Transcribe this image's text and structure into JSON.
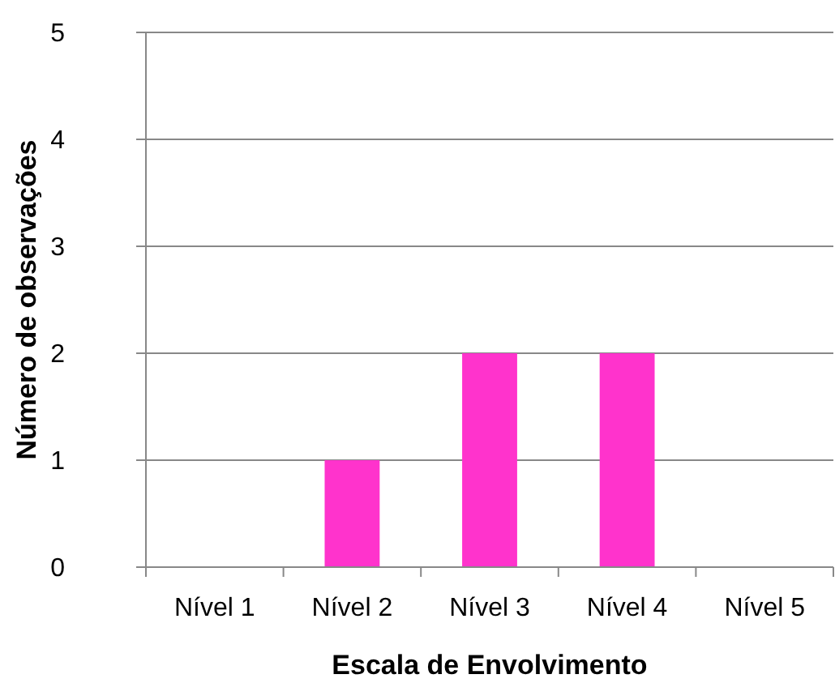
{
  "chart_data": {
    "type": "bar",
    "xlabel": "Escala de Envolvimento",
    "ylabel": "Número de observações",
    "categories": [
      "Nível 1",
      "Nível 2",
      "Nível 3",
      "Nível 4",
      "Nível 5"
    ],
    "values": [
      0,
      1,
      2,
      2,
      0
    ],
    "color": "#ff33cc",
    "ylim": [
      0,
      5
    ],
    "yticks": [
      0,
      1,
      2,
      3,
      4,
      5
    ],
    "grid": "y"
  }
}
